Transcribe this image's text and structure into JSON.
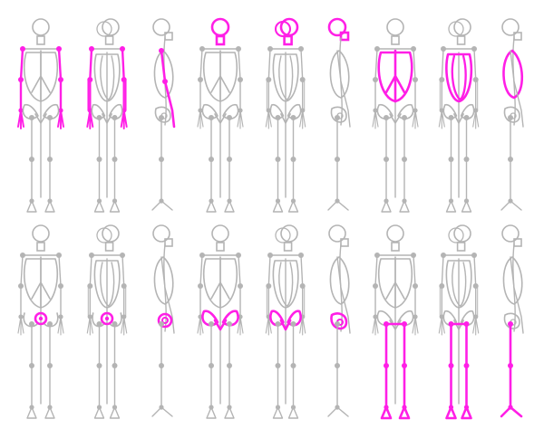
{
  "diagram": {
    "base_color": "#b4b4b4",
    "base_dark_color": "#8c8c8c",
    "highlight_color": "#ff1fe6",
    "rows": [
      {
        "groups": [
          {
            "highlight": "arms"
          },
          {
            "highlight": "head"
          },
          {
            "highlight": "ribcage"
          }
        ]
      },
      {
        "groups": [
          {
            "highlight": "pelvis-center"
          },
          {
            "highlight": "pelvis"
          },
          {
            "highlight": "legs"
          }
        ]
      }
    ],
    "views": [
      "front",
      "three-quarter",
      "side"
    ]
  }
}
